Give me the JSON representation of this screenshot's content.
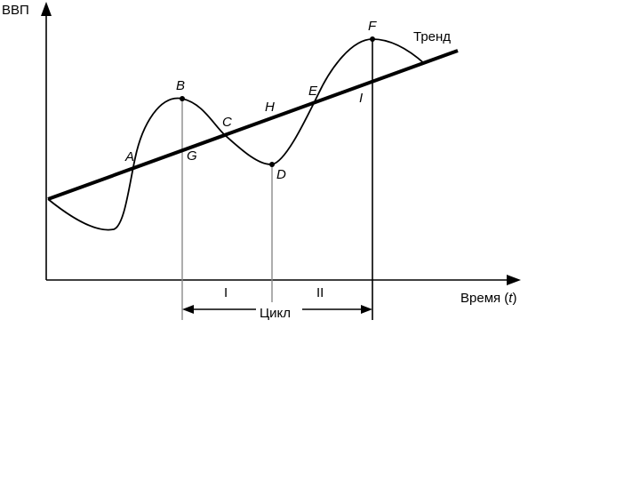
{
  "axes": {
    "y_label": "ВВП",
    "x_label_prefix": "Время (",
    "x_label_var": "t",
    "x_label_suffix": ")"
  },
  "trend_label": "Тренд",
  "points": {
    "A": "A",
    "B": "B",
    "C": "C",
    "D": "D",
    "E": "E",
    "F": "F",
    "G": "G",
    "H": "H",
    "I": "I"
  },
  "phases": {
    "first": "I",
    "second": "II"
  },
  "cycle_label": "Цикл"
}
